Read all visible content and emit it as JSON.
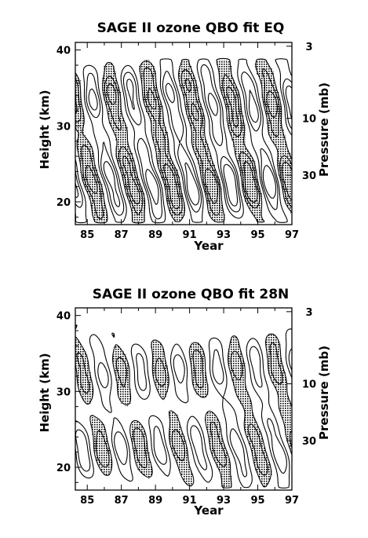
{
  "chart_data": [
    {
      "type": "contour",
      "title": "SAGE II ozone QBO fit EQ",
      "xlabel": "Year",
      "ylabel": "Height (km)",
      "y2label": "Pressure (mb)",
      "xlim": [
        1984.3,
        1997.0
      ],
      "ylim": [
        17,
        41
      ],
      "x_ticks": [
        85,
        87,
        89,
        91,
        93,
        95,
        97
      ],
      "x_tick_values": [
        1985,
        1987,
        1989,
        1991,
        1993,
        1995,
        1997
      ],
      "y_ticks": [
        20,
        30,
        40
      ],
      "pressure_ticks": [
        "3",
        "10",
        "30"
      ],
      "pressure_tick_heights_km": [
        40.5,
        31.0,
        23.5
      ],
      "shading": "stippled where anomaly is negative",
      "upper_regime": {
        "km_range": [
          28.5,
          38.5
        ],
        "period_years": 2.3,
        "phase_year": 1985.8
      },
      "lower_regime": {
        "km_range": [
          17.5,
          27.5
        ],
        "period_years": 2.3,
        "phase_year": 1984.7
      },
      "contour_levels": [
        -0.9,
        -0.6,
        -0.3,
        0.3,
        0.6,
        0.9
      ],
      "grid": false
    },
    {
      "type": "contour",
      "title": "SAGE II ozone QBO fit 28N",
      "xlabel": "Year",
      "ylabel": "Height (km)",
      "y2label": "Pressure (mb)",
      "xlim": [
        1984.3,
        1997.0
      ],
      "ylim": [
        17,
        41
      ],
      "x_ticks": [
        85,
        87,
        89,
        91,
        93,
        95,
        97
      ],
      "x_tick_values": [
        1985,
        1987,
        1989,
        1991,
        1993,
        1995,
        1997
      ],
      "y_ticks": [
        20,
        30,
        40
      ],
      "pressure_ticks": [
        "3",
        "10",
        "30"
      ],
      "pressure_tick_heights_km": [
        40.5,
        31.0,
        23.5
      ],
      "shading": "stippled where anomaly is negative",
      "upper_regime": {
        "km_range": [
          28.0,
          38.0
        ],
        "period_years": 2.3,
        "phase_year": 1986.2
      },
      "lower_regime": {
        "km_range": [
          17.5,
          27.0
        ],
        "period_years": 2.3,
        "phase_year": 1985.2
      },
      "contour_levels": [
        -0.6,
        -0.3,
        0.3,
        0.6
      ],
      "grid": false
    }
  ]
}
